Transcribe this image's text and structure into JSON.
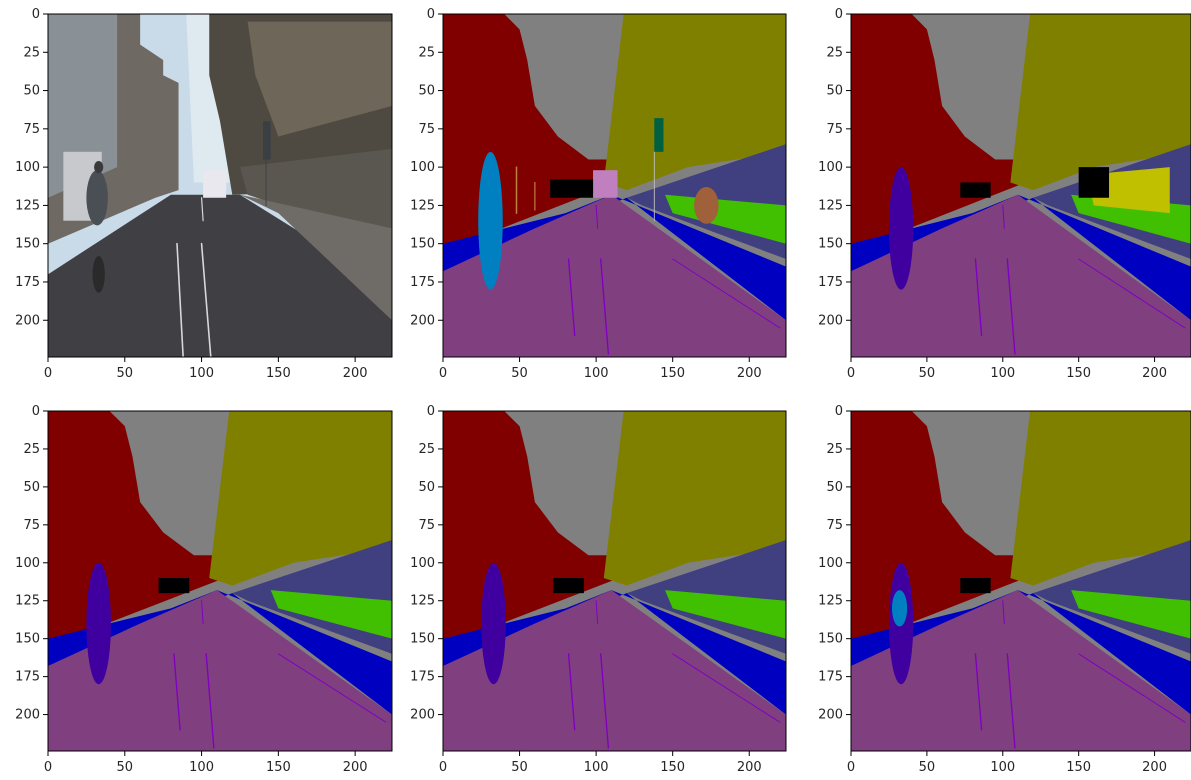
{
  "figure": {
    "colors": {
      "sky": "#808080",
      "building": "#800000",
      "tree": "#808000",
      "fence": "#404080",
      "vegetation": "#40c000",
      "sidewalk": "#0000c0",
      "road": "#804080",
      "lane_marking": "#8000c0",
      "pedestrian": "#4000a0",
      "cyclist": "#0080c0",
      "pole": "#c08040",
      "sign": "#006040",
      "car": "#000000",
      "bus": "#c080c0",
      "traffic_sign_yellow": "#c0c000"
    }
  },
  "chart_data": [
    {
      "type": "heatmap",
      "title": "",
      "content": "photo",
      "xticks": [
        "0",
        "50",
        "100",
        "150",
        "200"
      ],
      "yticks": [
        "0",
        "25",
        "50",
        "75",
        "100",
        "125",
        "150",
        "175",
        "200"
      ],
      "xlim": [
        0,
        224
      ],
      "ylim": [
        224,
        0
      ],
      "grid": false
    },
    {
      "type": "heatmap",
      "title": "",
      "content": "segmentation-ground-truth",
      "xticks": [
        "0",
        "50",
        "100",
        "150",
        "200"
      ],
      "yticks": [
        "0",
        "25",
        "50",
        "75",
        "100",
        "125",
        "150",
        "175",
        "200"
      ],
      "xlim": [
        0,
        224
      ],
      "ylim": [
        224,
        0
      ],
      "grid": false
    },
    {
      "type": "heatmap",
      "title": "",
      "content": "segmentation-prediction",
      "xticks": [
        "0",
        "50",
        "100",
        "150",
        "200"
      ],
      "yticks": [
        "0",
        "25",
        "50",
        "75",
        "100",
        "125",
        "150",
        "175",
        "200"
      ],
      "xlim": [
        0,
        224
      ],
      "ylim": [
        224,
        0
      ],
      "grid": false
    },
    {
      "type": "heatmap",
      "title": "",
      "content": "segmentation-prediction",
      "xticks": [
        "0",
        "50",
        "100",
        "150",
        "200"
      ],
      "yticks": [
        "0",
        "25",
        "50",
        "75",
        "100",
        "125",
        "150",
        "175",
        "200"
      ],
      "xlim": [
        0,
        224
      ],
      "ylim": [
        224,
        0
      ],
      "grid": false
    },
    {
      "type": "heatmap",
      "title": "",
      "content": "segmentation-prediction",
      "xticks": [
        "0",
        "50",
        "100",
        "150",
        "200"
      ],
      "yticks": [
        "0",
        "25",
        "50",
        "75",
        "100",
        "125",
        "150",
        "175",
        "200"
      ],
      "xlim": [
        0,
        224
      ],
      "ylim": [
        224,
        0
      ],
      "grid": false
    },
    {
      "type": "heatmap",
      "title": "",
      "content": "segmentation-prediction",
      "xticks": [
        "0",
        "50",
        "100",
        "150",
        "200"
      ],
      "yticks": [
        "0",
        "25",
        "50",
        "75",
        "100",
        "125",
        "150",
        "175",
        "200"
      ],
      "xlim": [
        0,
        224
      ],
      "ylim": [
        224,
        0
      ],
      "grid": false
    }
  ]
}
